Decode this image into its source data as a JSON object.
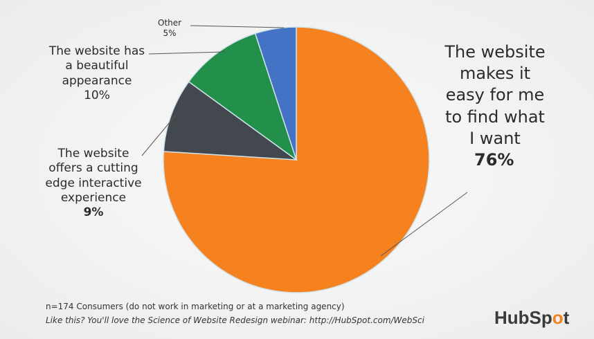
{
  "chart_data": {
    "type": "pie",
    "start": "top",
    "direction": "clockwise",
    "slices": [
      {
        "label": "The website makes it easy for me to find what I want",
        "value": 76,
        "value_label": "76%",
        "color": "#f5821f"
      },
      {
        "label": "The website offers a cutting edge interactive experience",
        "value": 9,
        "value_label": "9%",
        "color": "#43474e"
      },
      {
        "label": "The website has a beautiful appearance",
        "value": 10,
        "value_label": "10%",
        "color": "#22904a"
      },
      {
        "label": "Other",
        "value": 5,
        "value_label": "5%",
        "color": "#4472c4"
      }
    ]
  },
  "labels": {
    "easy": [
      "The website",
      "makes it",
      "easy for me",
      "to find what",
      "I want"
    ],
    "cutting": [
      "The website",
      "offers a cutting",
      "edge interactive",
      "experience"
    ],
    "beautiful": [
      "The website has",
      "a beautiful",
      "appearance"
    ],
    "other": "Other"
  },
  "footnote": {
    "sample": "n=174 Consumers (do not work in marketing or at a marketing agency)",
    "promo": "Like this?  You'll love the Science of Website Redesign webinar: http://HubSpot.com/WebSci"
  },
  "logo": {
    "text_a": "HubSp",
    "text_o": "o",
    "text_b": "t"
  }
}
